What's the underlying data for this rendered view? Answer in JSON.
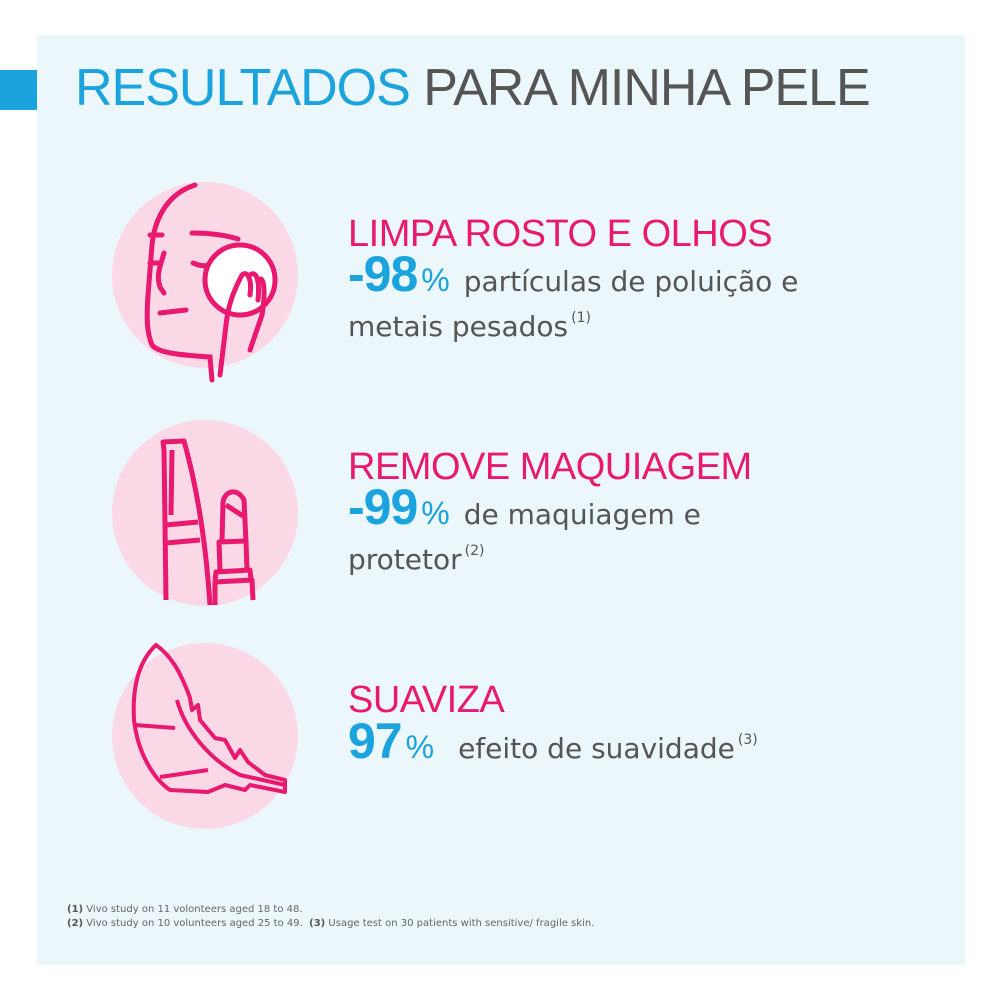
{
  "title": {
    "highlight": "RESULTADOS",
    "rest": "PARA MINHA PELE"
  },
  "colors": {
    "accent_blue": "#1aa3dc",
    "accent_pink": "#e8196e",
    "circle_pink": "#fbd8e6",
    "background": "#ebf7fa"
  },
  "items": [
    {
      "icon": "face-cleansing-icon",
      "heading": "LIMPA ROSTO E OLHOS",
      "value": "-98",
      "unit": "%",
      "text1": "partículas de poluição e",
      "text2": "metais pesados",
      "ref": "(1)"
    },
    {
      "icon": "makeup-mascara-lipstick-icon",
      "heading": "REMOVE MAQUIAGEM",
      "value": "-99",
      "unit": "%",
      "text1": "de maquiagem e",
      "text2": "protetor",
      "ref": "(2)"
    },
    {
      "icon": "feather-icon",
      "heading": "SUAVIZA",
      "value": "97",
      "unit": "%",
      "text1": "efeito de suavidade",
      "ref": "(3)"
    }
  ],
  "footnotes": [
    {
      "ref": "(1)",
      "text": "Vivo study on 11 volonteers aged 18 to 48."
    },
    {
      "ref": "(2)",
      "text": "Vivo study on 10 volunteers aged 25 to 49."
    },
    {
      "ref": "(3)",
      "text": "Usage test on 30 patients with sensitive/ fragile skin."
    }
  ]
}
